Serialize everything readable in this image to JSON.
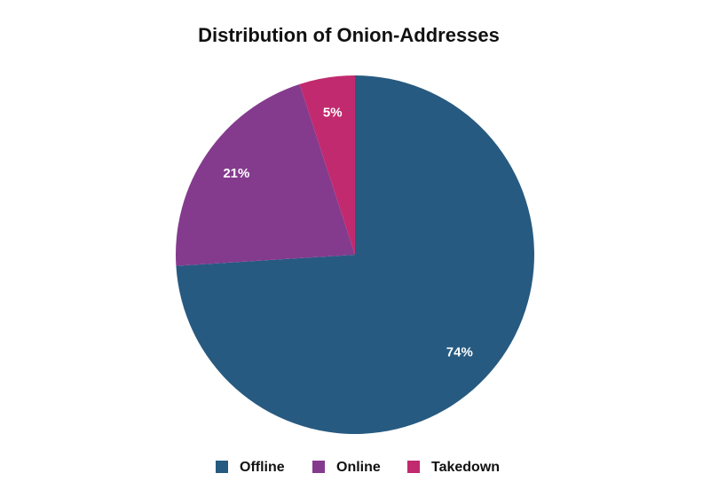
{
  "chart_data": {
    "type": "pie",
    "title": "Distribution of Onion-Addresses",
    "categories": [
      "Offline",
      "Online",
      "Takedown"
    ],
    "values": [
      74,
      21,
      5
    ],
    "value_labels": [
      "74%",
      "21%",
      "5%"
    ],
    "colors": [
      "#275a80",
      "#843b8e",
      "#c12a6e"
    ],
    "legend": "bottom"
  }
}
